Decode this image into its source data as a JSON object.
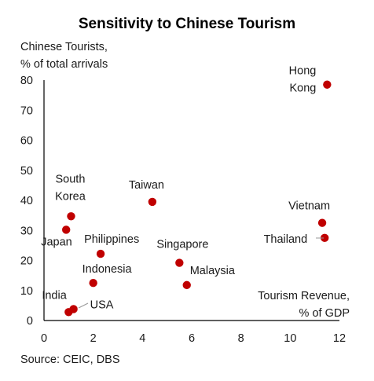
{
  "chart_data": {
    "type": "scatter",
    "title": "Sensitivity to Chinese Tourism",
    "ylabel": [
      "Chinese Tourists,",
      "% of total arrivals"
    ],
    "xlabel": [
      "Tourism Revenue,",
      "% of GDP"
    ],
    "xlim": [
      0,
      12
    ],
    "ylim": [
      0,
      80
    ],
    "xticks": [
      0,
      2,
      4,
      6,
      8,
      10,
      12
    ],
    "yticks": [
      0,
      10,
      20,
      30,
      40,
      50,
      60,
      70,
      80
    ],
    "grid": false,
    "marker_color": "#c00000",
    "points": [
      {
        "label": [
          "Hong",
          "Kong"
        ],
        "x": 11.5,
        "y": 78.5
      },
      {
        "label": [
          "Vietnam"
        ],
        "x": 11.3,
        "y": 32.5
      },
      {
        "label": [
          "Thailand"
        ],
        "x": 11.4,
        "y": 27.5
      },
      {
        "label": [
          "Taiwan"
        ],
        "x": 4.4,
        "y": 39.5
      },
      {
        "label": [
          "South",
          "Korea"
        ],
        "x": 1.1,
        "y": 34.7
      },
      {
        "label": [
          "Japan"
        ],
        "x": 0.9,
        "y": 30.2
      },
      {
        "label": [
          "Philippines"
        ],
        "x": 2.3,
        "y": 22.2
      },
      {
        "label": [
          "Singapore"
        ],
        "x": 5.5,
        "y": 19.2
      },
      {
        "label": [
          "Indonesia"
        ],
        "x": 2.0,
        "y": 12.5
      },
      {
        "label": [
          "Malaysia"
        ],
        "x": 5.8,
        "y": 11.8
      },
      {
        "label": [
          "India"
        ],
        "x": 1.0,
        "y": 2.8
      },
      {
        "label": [
          "USA"
        ],
        "x": 1.2,
        "y": 3.8
      }
    ]
  },
  "source": "Source: CEIC, DBS"
}
